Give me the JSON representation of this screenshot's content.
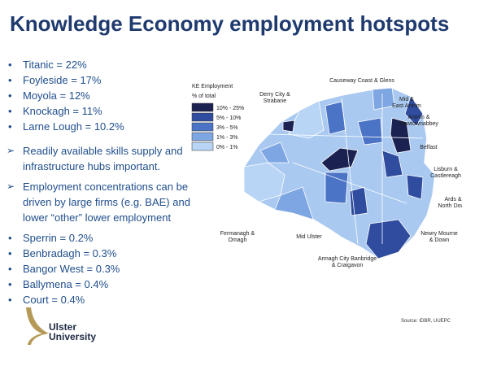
{
  "title": "Knowledge Economy employment hotspots",
  "top_bullets": [
    "Titanic  = 22%",
    "Foyleside = 17%",
    "Moyola = 12%",
    "Knockagh = 11%",
    "Larne Lough = 10.2%"
  ],
  "points": [
    "Readily available skills supply and infrastructure hubs important.",
    "Employment concentrations can be driven by large firms (e.g. BAE) and lower “other” lower employment"
  ],
  "bottom_bullets": [
    "Sperrin = 0.2%",
    "Benbradagh = 0.3%",
    "Bangor West = 0.3%",
    "Ballymena = 0.4%",
    "Court = 0.4%"
  ],
  "legend": {
    "title": "KE Employment",
    "subtitle": "% of total",
    "items": [
      {
        "label": "10% - 25%",
        "color": "#1b2150"
      },
      {
        "label": "5% - 10%",
        "color": "#2f4c9f"
      },
      {
        "label": "3% - 5%",
        "color": "#4c74c6"
      },
      {
        "label": "1% - 3%",
        "color": "#7ea6e2"
      },
      {
        "label": "0% - 1%",
        "color": "#b8d5f5"
      }
    ]
  },
  "regions": [
    {
      "lines": [
        "Causeway Coast & Glens"
      ]
    },
    {
      "lines": [
        "Derry City &",
        "Strabane"
      ]
    },
    {
      "lines": [
        "Mid &",
        "East Antrim"
      ]
    },
    {
      "lines": [
        "Antrim &",
        "Newtownabbey"
      ]
    },
    {
      "lines": [
        "Belfast"
      ]
    },
    {
      "lines": [
        "Lisburn &",
        "Castlereagh"
      ]
    },
    {
      "lines": [
        "Ards &",
        "North Down"
      ]
    },
    {
      "lines": [
        "Newry Mourne",
        "& Down"
      ]
    },
    {
      "lines": [
        "Armagh City Banbridge",
        "& Craigavon"
      ]
    },
    {
      "lines": [
        "Mid Ulster"
      ]
    },
    {
      "lines": [
        "Fermanagh &",
        "Omagh"
      ]
    }
  ],
  "source": "Source: IDBR, UUEPC",
  "logo": [
    "Ulster",
    "University"
  ]
}
